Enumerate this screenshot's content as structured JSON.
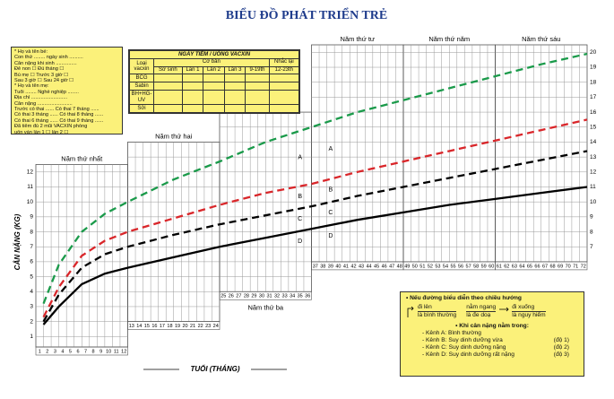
{
  "chart_data": {
    "type": "line",
    "title": "BIỂU ĐỒ    PHÁT TRIỂN TRẺ",
    "ylabel": "CÂN NẶNG (KG)",
    "xlabel": "TUỔI (THÁNG)",
    "xlim": [
      0,
      72
    ],
    "ylim": [
      0,
      20.5
    ],
    "grid": true,
    "x": [
      1,
      3,
      6,
      9,
      12,
      18,
      24,
      30,
      36,
      42,
      48,
      54,
      60,
      66,
      72
    ],
    "xticks": [
      1,
      2,
      3,
      4,
      5,
      6,
      7,
      8,
      9,
      10,
      11,
      12,
      13,
      14,
      15,
      16,
      17,
      18,
      19,
      20,
      21,
      22,
      23,
      24,
      25,
      26,
      27,
      28,
      29,
      30,
      31,
      32,
      33,
      34,
      35,
      36,
      37,
      38,
      39,
      40,
      41,
      42,
      43,
      44,
      45,
      46,
      47,
      48,
      49,
      50,
      51,
      52,
      53,
      54,
      55,
      56,
      57,
      58,
      59,
      60,
      61,
      62,
      63,
      64,
      65,
      66,
      67,
      68,
      69,
      70,
      71,
      72
    ],
    "yticks": [
      1,
      2,
      3,
      4,
      5,
      6,
      7,
      8,
      9,
      10,
      11,
      12,
      13,
      14,
      15,
      16,
      17,
      18,
      19,
      20
    ],
    "blocks": [
      {
        "label": "Năm thứ nhất",
        "months": [
          0,
          12
        ],
        "ylim": [
          0.3,
          12.5
        ]
      },
      {
        "label": "Năm thứ hai",
        "months": [
          12,
          24
        ],
        "ylim": [
          2,
          14
        ]
      },
      {
        "label": "Năm thứ ba",
        "months": [
          24,
          36
        ],
        "ylim": [
          4,
          16
        ],
        "label_at": "bottom"
      },
      {
        "label": "Năm thứ tư",
        "months": [
          36,
          48
        ],
        "ylim": [
          6,
          20.5
        ]
      },
      {
        "label": "Năm thứ năm",
        "months": [
          48,
          60
        ],
        "ylim": [
          6,
          20.5
        ]
      },
      {
        "label": "Năm thứ sáu",
        "months": [
          60,
          72
        ],
        "ylim": [
          6,
          20.5
        ]
      }
    ],
    "zone_labels": [
      "A",
      "B",
      "C",
      "D"
    ],
    "series": [
      {
        "color": "#1a9a4a",
        "style": "dashed",
        "values": [
          3.2,
          5.8,
          8.0,
          9.2,
          10.0,
          11.5,
          12.7,
          14.0,
          15.0,
          16.0,
          16.8,
          17.6,
          18.4,
          19.2,
          19.9
        ]
      },
      {
        "color": "#d9262a",
        "style": "dashed",
        "values": [
          2.3,
          4.3,
          6.4,
          7.4,
          8.0,
          8.9,
          9.8,
          10.6,
          11.2,
          12.0,
          12.7,
          13.4,
          14.1,
          14.8,
          15.5
        ]
      },
      {
        "color": "#000000",
        "style": "dashed",
        "values": [
          2.0,
          3.8,
          5.6,
          6.5,
          7.0,
          7.8,
          8.5,
          9.1,
          9.7,
          10.4,
          11.0,
          11.6,
          12.2,
          12.8,
          13.4
        ]
      },
      {
        "color": "#000000",
        "style": "solid",
        "values": [
          1.8,
          3.0,
          4.5,
          5.2,
          5.6,
          6.3,
          7.0,
          7.6,
          8.2,
          8.8,
          9.3,
          9.8,
          10.2,
          10.6,
          11.0
        ]
      }
    ]
  },
  "info_card": [
    "* Họ và tên bé:",
    "Con thứ ........ ngày sinh ..........",
    "Cân nặng khi sinh ...............",
    "Đẻ non ☐     Đủ tháng ☐",
    "Bú mẹ ☐      Trước 3 giờ ☐",
    "Sau 3 giờ ☐   Sau 24 giờ ☐",
    "* Họ và tên mẹ:",
    "Tuổi ........ Nghề nghiệp ........",
    "Địa chỉ ..........................",
    "Cân nặng .........................",
    "Trước có thai ...... Có thai 7 tháng ......",
    "Có thai 3 tháng ...... Có thai 8 tháng ......",
    "Có thai 6 tháng ...... Có thai 9 tháng ......",
    "Đã tiêm đủ 2 mũi VACXIN phòng",
    "uốn ván lần 1 ☐       lần 2 ☐"
  ],
  "vaccine_table": {
    "title": "NGÀY TIÊM / UỐNG VACXIN",
    "type_header": "Loại vacxin",
    "basic": "Cơ bản",
    "booster": "Nhắc lại",
    "columns": [
      "Sơ sinh",
      "Lần 1",
      "Lần 2",
      "Lần 3",
      "9-19th",
      "12-23th"
    ],
    "rows": [
      "BCG",
      "Sabin",
      "BH+HG-UV",
      "Sởi"
    ]
  },
  "notes": {
    "trend_intro": "• Nếu đường biểu diễn theo chiều hướng",
    "up": "đi lên",
    "up_meaning": "là bình thường",
    "flat": "nằm ngang",
    "flat_meaning": "là đe doạ",
    "down": "đi xuống",
    "down_meaning": "là nguy hiểm",
    "channel_intro": "• Khi cân nặng nằm trong:",
    "channels": [
      [
        "- Kênh A: Bình thường",
        ""
      ],
      [
        "- Kênh B: Suy dinh dưỡng vừa",
        "(độ 1)"
      ],
      [
        "- Kênh C: Suy dinh dưỡng nặng",
        "(độ 2)"
      ],
      [
        "- Kênh D: Suy dinh dưỡng rất nặng",
        "(độ 3)"
      ]
    ]
  }
}
